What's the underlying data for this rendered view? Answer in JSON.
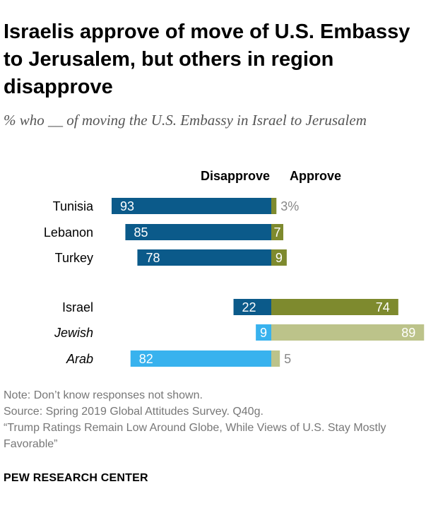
{
  "title": "Israelis approve of move of U.S. Embassy to Jerusalem, but others in region disapprove",
  "subtitle": "% who __ of moving the U.S. Embassy in Israel to Jerusalem",
  "notes": [
    "Note: Don’t know responses not shown.",
    "Source: Spring 2019 Global Attitudes Survey. Q40g.",
    "“Trump Ratings Remain Low Around Globe, While Views of U.S. Stay Mostly Favorable”"
  ],
  "source_name": "PEW RESEARCH CENTER",
  "colors": {
    "disapprove": "#0b5a8a",
    "approve": "#7e8a2e",
    "disapprove_sub": "#38b2ee",
    "approve_sub": "#bcc38a",
    "outside_label": "#888888"
  },
  "chart_data": {
    "type": "bar",
    "orientation": "horizontal-diverging",
    "column_headers": [
      "Disapprove",
      "Approve"
    ],
    "xlim": [
      0,
      100
    ],
    "rows": [
      {
        "label": "Tunisia",
        "italic": false,
        "subgroup": false,
        "disapprove": 93,
        "approve": 3,
        "disapprove_label": "93",
        "approve_label": "3%"
      },
      {
        "label": "Lebanon",
        "italic": false,
        "subgroup": false,
        "disapprove": 85,
        "approve": 7,
        "disapprove_label": "85",
        "approve_label": "7"
      },
      {
        "label": "Turkey",
        "italic": false,
        "subgroup": false,
        "disapprove": 78,
        "approve": 9,
        "disapprove_label": "78",
        "approve_label": "9"
      },
      {
        "label": "Israel",
        "italic": false,
        "subgroup": false,
        "disapprove": 22,
        "approve": 74,
        "disapprove_label": "22",
        "approve_label": "74"
      },
      {
        "label": "Jewish",
        "italic": true,
        "subgroup": true,
        "disapprove": 9,
        "approve": 89,
        "disapprove_label": "9",
        "approve_label": "89"
      },
      {
        "label": "Arab",
        "italic": true,
        "subgroup": true,
        "disapprove": 82,
        "approve": 5,
        "disapprove_label": "82",
        "approve_label": "5"
      }
    ]
  }
}
